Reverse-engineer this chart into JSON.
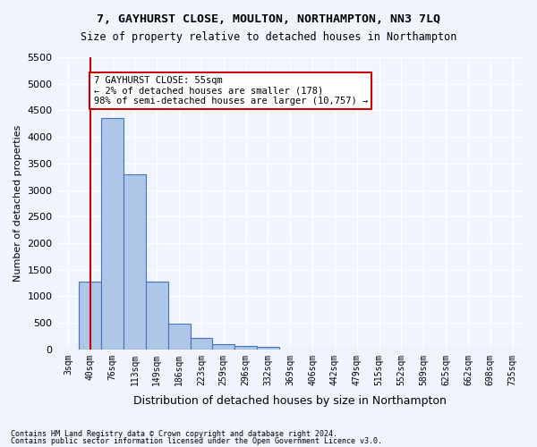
{
  "title": "7, GAYHURST CLOSE, MOULTON, NORTHAMPTON, NN3 7LQ",
  "subtitle": "Size of property relative to detached houses in Northampton",
  "xlabel": "Distribution of detached houses by size in Northampton",
  "ylabel": "Number of detached properties",
  "footer_line1": "Contains HM Land Registry data © Crown copyright and database right 2024.",
  "footer_line2": "Contains public sector information licensed under the Open Government Licence v3.0.",
  "bar_labels": [
    "3sqm",
    "40sqm",
    "76sqm",
    "113sqm",
    "149sqm",
    "186sqm",
    "223sqm",
    "259sqm",
    "296sqm",
    "332sqm",
    "369sqm",
    "406sqm",
    "442sqm",
    "479sqm",
    "515sqm",
    "552sqm",
    "589sqm",
    "625sqm",
    "662sqm",
    "698sqm",
    "735sqm"
  ],
  "bar_values": [
    0,
    1270,
    4350,
    3300,
    1270,
    490,
    220,
    90,
    60,
    50,
    0,
    0,
    0,
    0,
    0,
    0,
    0,
    0,
    0,
    0,
    0
  ],
  "bar_color": "#aec6e8",
  "bar_edge_color": "#4472c4",
  "property_line_x": 1,
  "property_size": 55,
  "annotation_title": "7 GAYHURST CLOSE: 55sqm",
  "annotation_line2": "← 2% of detached houses are smaller (178)",
  "annotation_line3": "98% of semi-detached houses are larger (10,757) →",
  "annotation_box_color": "#ffffff",
  "annotation_border_color": "#cc0000",
  "vline_color": "#cc0000",
  "background_color": "#f0f4ff",
  "grid_color": "#ffffff",
  "ylim": [
    0,
    5500
  ],
  "yticks": [
    0,
    500,
    1000,
    1500,
    2000,
    2500,
    3000,
    3500,
    4000,
    4500,
    5000,
    5500
  ]
}
